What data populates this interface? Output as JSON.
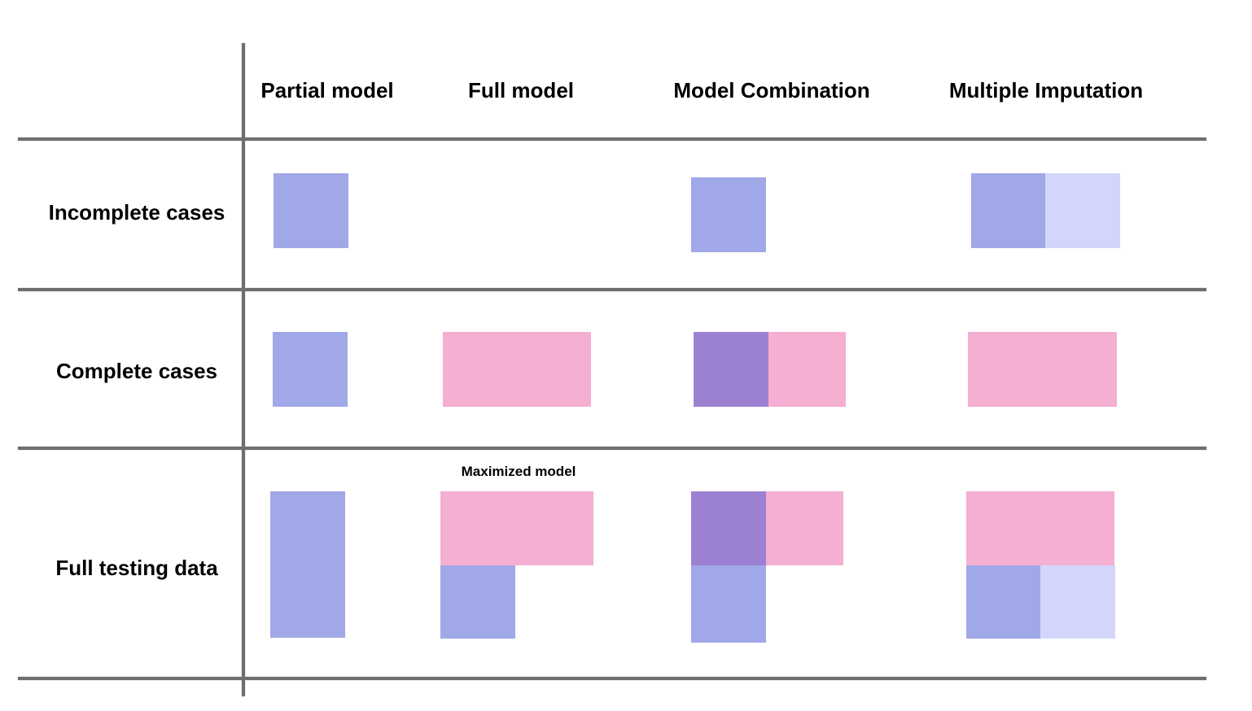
{
  "column_headers": [
    "Partial model",
    "Full model",
    "Model Combination",
    "Multiple Imputation"
  ],
  "row_headers": [
    "Incomplete cases",
    "Complete cases",
    "Full testing data"
  ],
  "annotations": {
    "maximized_model": "Maximized model"
  },
  "colors": {
    "blue": "#a0a8e8",
    "light_blue": "#d4d5fa",
    "pink": "#f4afd3",
    "purple": "#9c81d3",
    "rule": "#6e6e6e"
  }
}
